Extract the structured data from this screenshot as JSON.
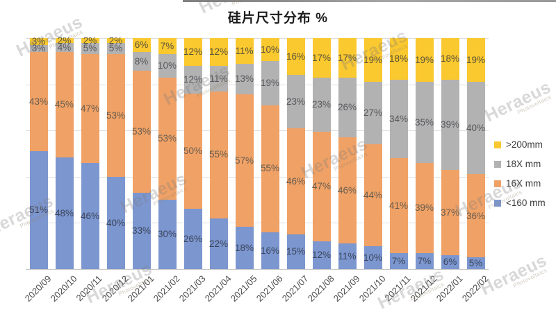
{
  "watermark": {
    "brand": "Heraeus",
    "sub": "Photovoltaics"
  },
  "chart_data": {
    "type": "bar",
    "stacked": true,
    "title": "硅片尺寸分布 %",
    "categories": [
      "2020/09",
      "2020/10",
      "2020/11",
      "2020/12",
      "2021/01",
      "2021/02",
      "2021/03",
      "2021/04",
      "2021/05",
      "2021/06",
      "2021/07",
      "2021/08",
      "2021/09",
      "2021/10",
      "2021/11",
      "2021/12",
      "2022/01",
      "2022/02"
    ],
    "series": [
      {
        "name": "<160 mm",
        "color": "#7C96D0",
        "label_color": "#3A4559",
        "values": [
          51,
          48,
          46,
          40,
          33,
          30,
          26,
          22,
          18,
          16,
          15,
          12,
          11,
          10,
          7,
          7,
          6,
          5
        ]
      },
      {
        "name": "16X mm",
        "color": "#F0A165",
        "label_color": "#665D50",
        "values": [
          43,
          45,
          47,
          53,
          53,
          53,
          50,
          55,
          57,
          55,
          46,
          47,
          46,
          44,
          41,
          39,
          37,
          36
        ]
      },
      {
        "name": "18X mm",
        "color": "#B3B2B2",
        "label_color": "#56575C",
        "values": [
          3,
          4,
          5,
          5,
          8,
          10,
          12,
          11,
          13,
          19,
          23,
          23,
          26,
          27,
          34,
          35,
          39,
          40
        ]
      },
      {
        "name": ">200mm",
        "color": "#FAC82F",
        "label_color": "#585239",
        "values": [
          3,
          2,
          2,
          2,
          6,
          7,
          12,
          12,
          11,
          10,
          16,
          17,
          17,
          19,
          18,
          19,
          18,
          19
        ]
      }
    ],
    "ylim": [
      0,
      100
    ],
    "grid": true,
    "gridline_interval": 20,
    "legend_position": "right",
    "legend_order_top_to_bottom": [
      ">200mm",
      "18X mm",
      "16X mm",
      "<160 mm"
    ],
    "value_suffix": "%"
  }
}
